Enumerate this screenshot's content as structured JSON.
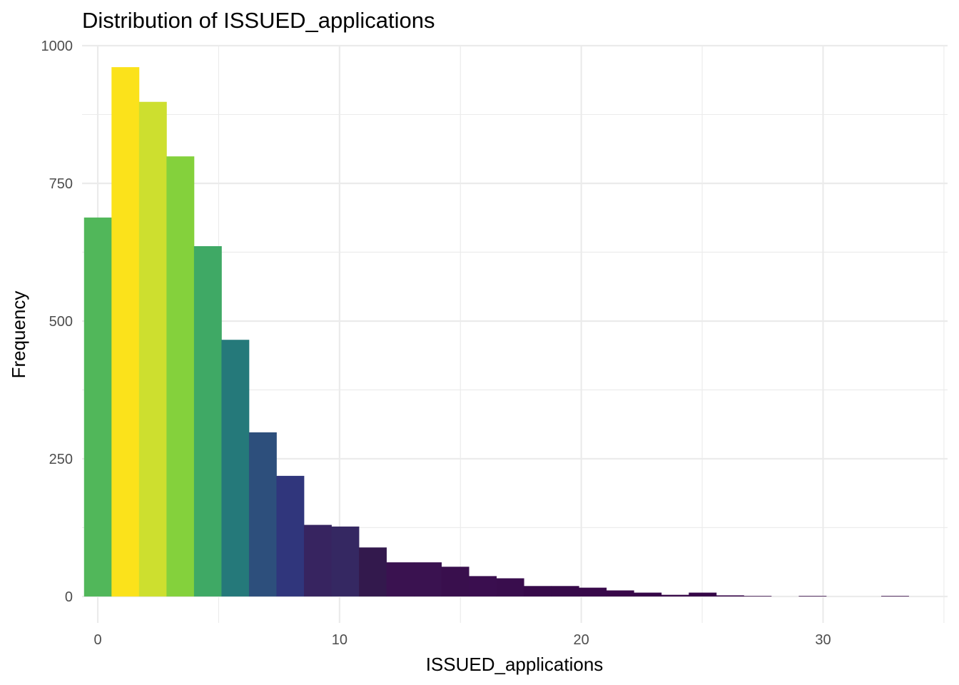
{
  "chart_data": {
    "type": "bar",
    "title": "Distribution of ISSUED_applications",
    "xlabel": "ISSUED_applications",
    "ylabel": "Frequency",
    "xlim": [
      -0.65,
      35.15
    ],
    "ylim": [
      -48,
      1000
    ],
    "x_ticks": [
      0,
      10,
      20,
      30
    ],
    "y_ticks": [
      0,
      250,
      500,
      750,
      1000
    ],
    "bin_width": 1.137,
    "bin_start": -0.568,
    "grid": true,
    "legend": "none",
    "counts": [
      688,
      961,
      898,
      799,
      636,
      466,
      298,
      219,
      130,
      127,
      89,
      62,
      62,
      54,
      37,
      33,
      19,
      19,
      16,
      11,
      7,
      3,
      7,
      2,
      1,
      0,
      1,
      0,
      0,
      1
    ],
    "colors": [
      "#51b75a",
      "#fbe21b",
      "#cddf2f",
      "#84d13c",
      "#3fa965",
      "#25797a",
      "#2d4f7c",
      "#30367c",
      "#372460",
      "#352862",
      "#33194d",
      "#3a1250",
      "#3a1250",
      "#390f4d",
      "#3a0e4f",
      "#390d4d",
      "#370a4a",
      "#370a4a",
      "#38094a",
      "#380849",
      "#360748",
      "#360647",
      "#360748",
      "#350547",
      "#350546",
      "#350546",
      "#350546",
      "#350546",
      "#350546",
      "#350546"
    ]
  }
}
